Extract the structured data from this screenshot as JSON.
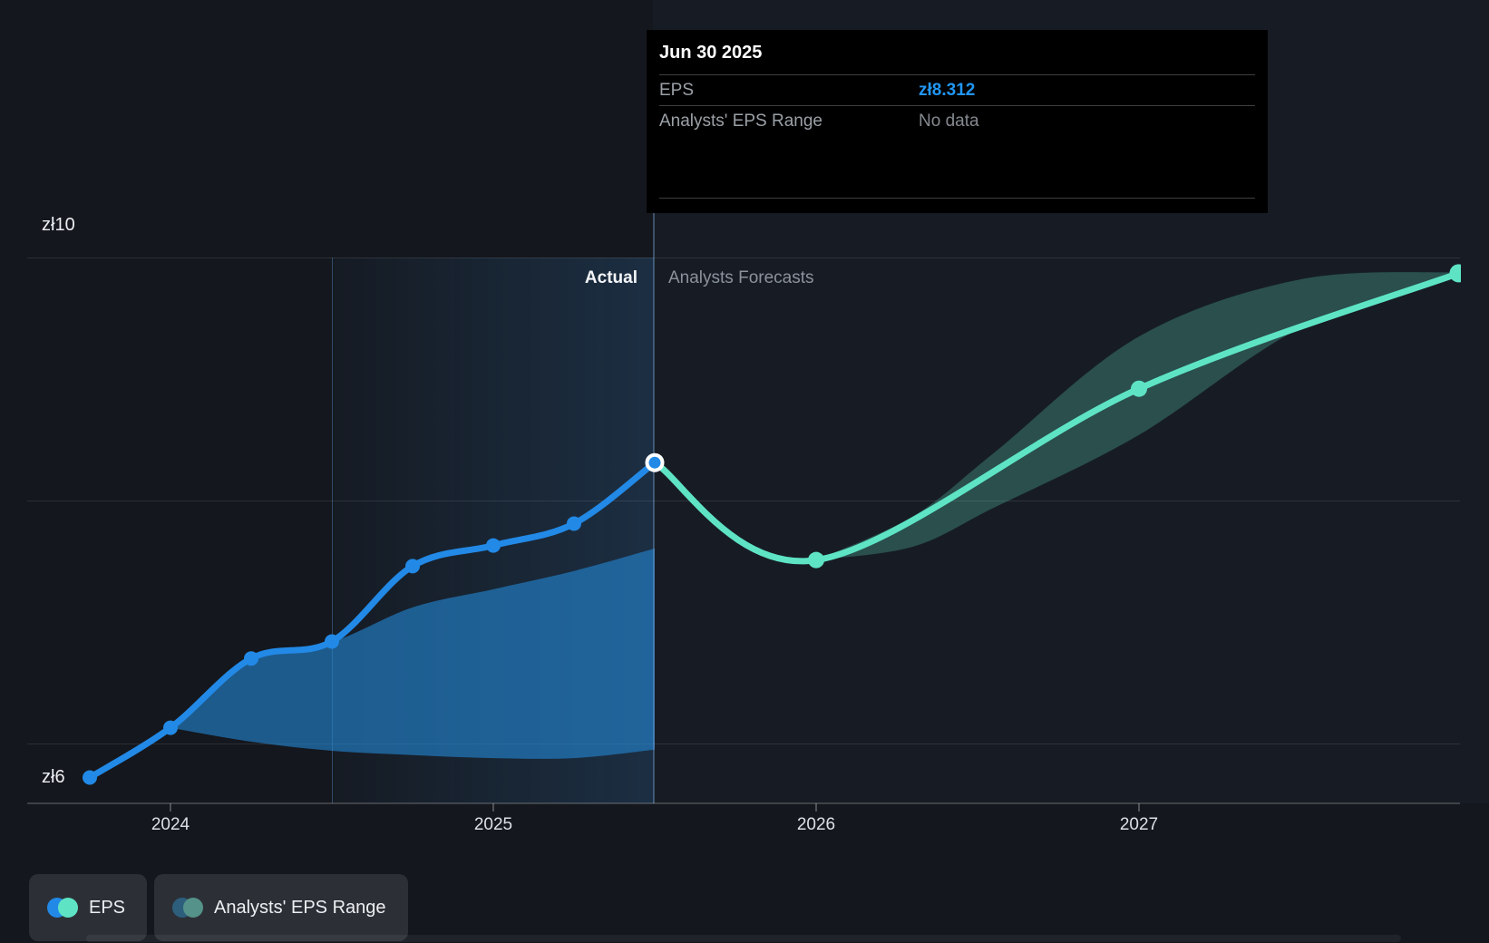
{
  "axes": {
    "y_top": "zł10",
    "y_bottom": "zł6",
    "x_ticks": [
      "2024",
      "2025",
      "2026",
      "2027"
    ]
  },
  "labels": {
    "actual": "Actual",
    "forecasts": "Analysts Forecasts"
  },
  "tooltip": {
    "date": "Jun 30 2025",
    "rows": [
      {
        "label": "EPS",
        "value": "zł8.312"
      },
      {
        "label": "Analysts' EPS Range",
        "value": "No data"
      }
    ]
  },
  "legend": [
    {
      "label": "EPS",
      "dots": [
        "#2289e6",
        "#5ee4c5"
      ]
    },
    {
      "label": "Analysts' EPS Range",
      "dots": [
        "#2d5f7d",
        "#55938a"
      ]
    }
  ],
  "colors": {
    "background": "#14171d",
    "forecast_background": "#171c24",
    "eps_line": "#2289e6",
    "forecast_line": "#5ee4c5",
    "eps_value_accent": "#2196f3",
    "tooltip_background": "#000000",
    "past_range_fill": "rgba(36,134,210,0.62)",
    "forecast_range_fill": "rgba(95,227,196,0.26)"
  },
  "chart_data": {
    "type": "line",
    "title": "EPS actual and analysts forecast (currency zł)",
    "currency": "zł",
    "x_unit": "year",
    "xlim": [
      2023.55,
      2028.05
    ],
    "ylim": [
      5.4,
      10.4
    ],
    "y_gridlines": [
      10,
      8,
      6
    ],
    "x_ticks": [
      2024,
      2025,
      2026,
      2027
    ],
    "divider_x": 2025.5,
    "divider_label_left": "Actual",
    "divider_label_right": "Analysts Forecasts",
    "highlight_range": [
      2024.5,
      2025.5
    ],
    "legend_position": "bottom-left",
    "series": [
      {
        "name": "EPS",
        "role": "actual",
        "color": "#2289e6",
        "points": [
          [
            2023.75,
            5.72
          ],
          [
            2024.0,
            6.13
          ],
          [
            2024.25,
            6.7
          ],
          [
            2024.5,
            6.84
          ],
          [
            2024.75,
            7.46
          ],
          [
            2025.0,
            7.63
          ],
          [
            2025.25,
            7.81
          ],
          [
            2025.5,
            8.312
          ]
        ],
        "end_marker": "white-ring",
        "tooltip_point": {
          "x": 2025.5,
          "label": "Jun 30 2025",
          "value": 8.312
        }
      },
      {
        "name": "EPS forecast",
        "role": "forecast",
        "color": "#5ee4c5",
        "points": [
          [
            2025.5,
            8.312
          ],
          [
            2026.0,
            7.51
          ],
          [
            2027.0,
            8.92
          ],
          [
            2027.99,
            9.87
          ]
        ],
        "marker_indices": [
          1,
          2,
          3
        ]
      }
    ],
    "ranges": [
      {
        "name": "Analysts' EPS Range (past)",
        "fill": "rgba(36,134,210,0.62)",
        "points": [
          [
            2024.0,
            6.13,
            6.13
          ],
          [
            2024.25,
            6.015,
            6.7
          ],
          [
            2024.5,
            5.94,
            6.835
          ],
          [
            2024.75,
            5.905,
            7.12
          ],
          [
            2025.0,
            5.88,
            7.27
          ],
          [
            2025.25,
            5.88,
            7.42
          ],
          [
            2025.5,
            5.95,
            7.605
          ]
        ]
      },
      {
        "name": "Analysts' EPS Range (forecast)",
        "fill": "rgba(95,227,196,0.26)",
        "points": [
          [
            2026.0,
            7.51,
            7.51
          ],
          [
            2026.3,
            7.62,
            7.87
          ],
          [
            2026.55,
            7.94,
            8.39
          ],
          [
            2027.0,
            8.54,
            9.35
          ],
          [
            2027.5,
            9.42,
            9.82
          ],
          [
            2027.99,
            9.86,
            9.88
          ]
        ]
      }
    ]
  }
}
